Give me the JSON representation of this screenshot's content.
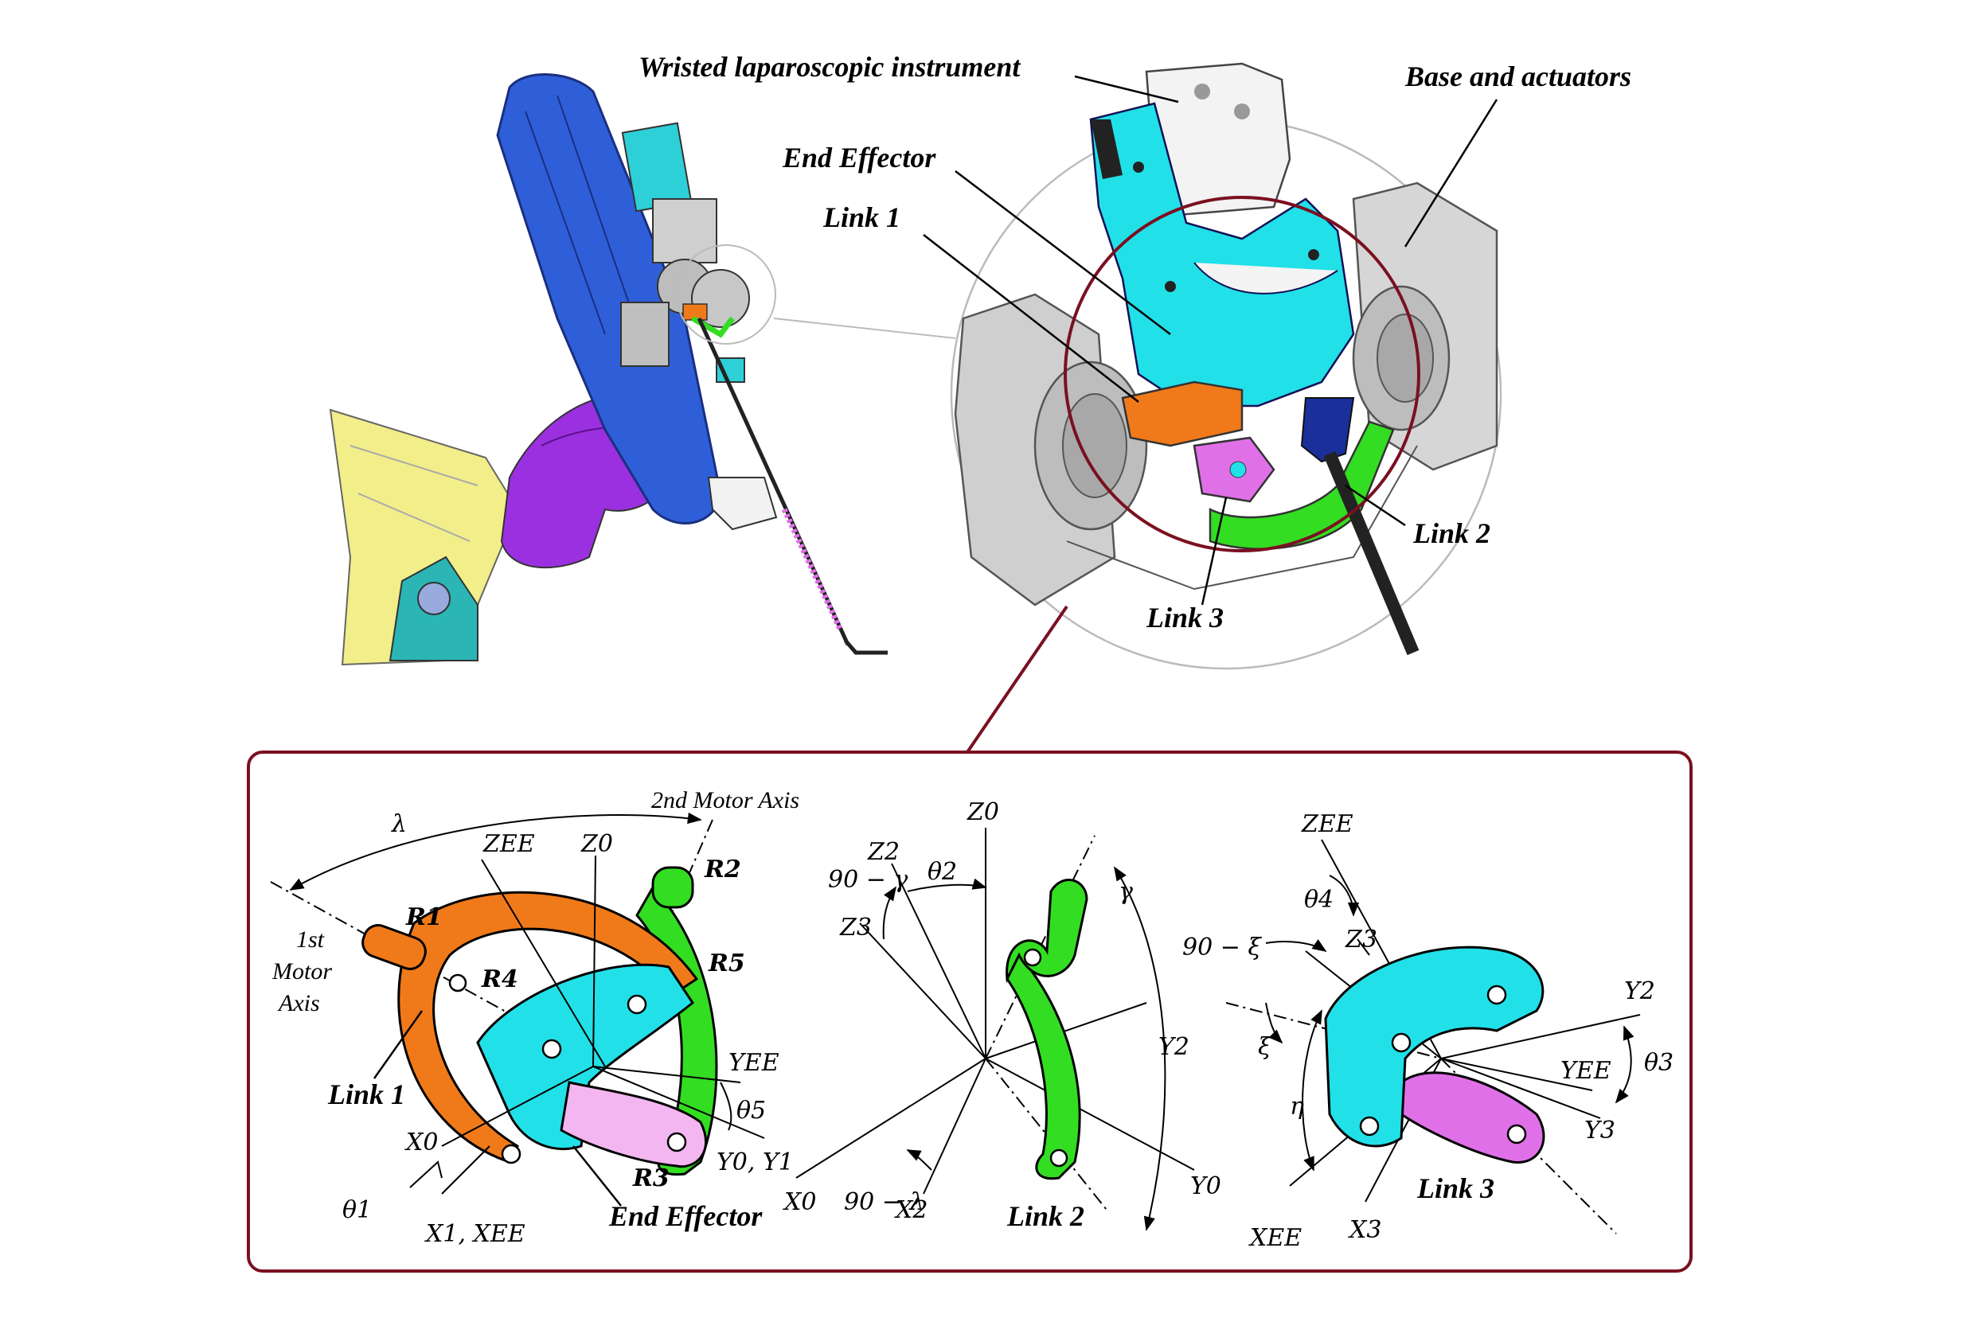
{
  "colors": {
    "link1": "#f07a1a",
    "link2": "#33dd22",
    "link3": "#e070e8",
    "end_effector": "#22e0e8",
    "robot_blue": "#2f5fd8",
    "robot_purple": "#9b30e0",
    "robot_yellow": "#f2ee8a",
    "frame": "#7a1020",
    "metal": "#c9c9c9"
  },
  "callouts": {
    "instrument": "Wristed laparoscopic instrument",
    "base": "Base and actuators",
    "end_effector": "End Effector",
    "link1": "Link 1",
    "link2": "Link 2",
    "link3": "Link 3"
  },
  "panel_left": {
    "lambda": "λ",
    "motor2": "2nd Motor Axis",
    "motor1_line1": "1st",
    "motor1_line2": "Motor",
    "motor1_line3": "Axis",
    "zee": "ZEE",
    "z0": "Z0",
    "r1": "R1",
    "r2": "R2",
    "r3": "R3",
    "r4": "R4",
    "r5": "R5",
    "yee": "YEE",
    "theta5": "θ5",
    "y0y1": "Y0, Y1",
    "x0": "X0",
    "theta1": "θ1",
    "x1xee": "X1, XEE",
    "link1": "Link 1",
    "end_effector": "End Effector"
  },
  "panel_mid": {
    "z0": "Z0",
    "z2": "Z2",
    "theta2": "θ2",
    "ninety_gamma": "90 − γ",
    "z3": "Z3",
    "gamma": "γ",
    "y2": "Y2",
    "y0": "Y0",
    "x0": "X0",
    "ninety_lambda": "90 − λ",
    "x2": "X2",
    "link2": "Link 2"
  },
  "panel_right": {
    "zee": "ZEE",
    "theta4": "θ4",
    "ninety_xi": "90 − ξ",
    "z3": "Z3",
    "xi": "ξ",
    "y2": "Y2",
    "yee": "YEE",
    "theta3": "θ3",
    "y3": "Y3",
    "eta": "η",
    "xee": "XEE",
    "x3": "X3",
    "link3": "Link 3"
  }
}
